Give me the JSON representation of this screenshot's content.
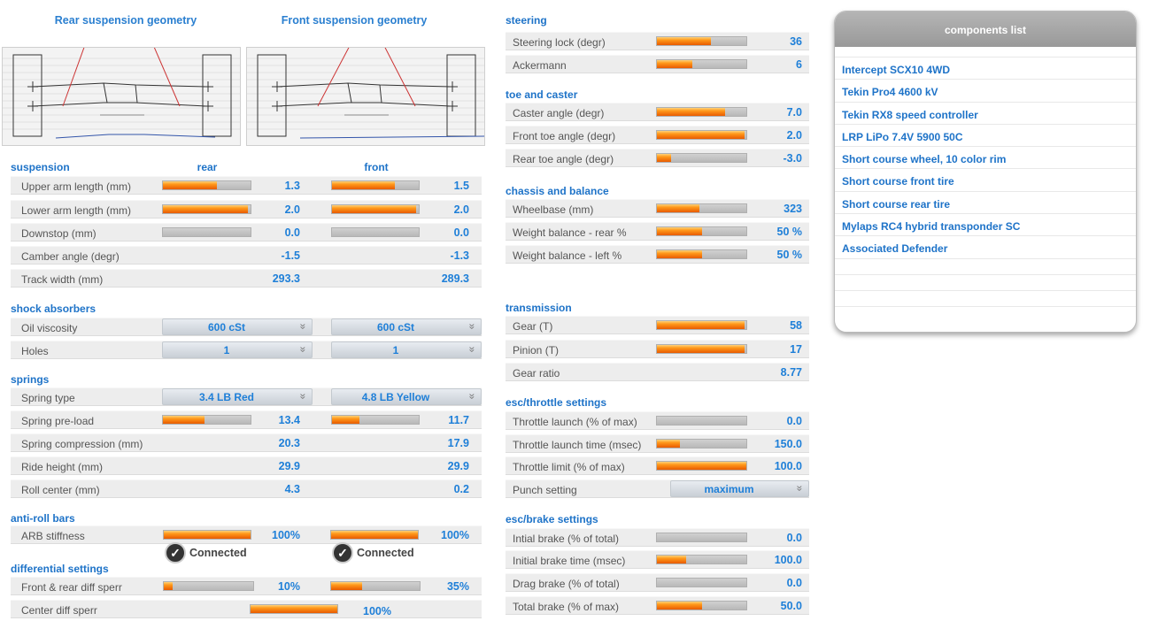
{
  "geometry": {
    "rear_title": "Rear suspension geometry",
    "front_title": "Front suspension geometry"
  },
  "suspension": {
    "title": "suspension",
    "rear_header": "rear",
    "front_header": "front",
    "rows": [
      {
        "label": "Upper arm length (mm)",
        "rear": "1.3",
        "front": "1.5",
        "rear_level": 0.62,
        "front_level": 0.72
      },
      {
        "label": "Lower arm length (mm)",
        "rear": "2.0",
        "front": "2.0",
        "rear_level": 0.97,
        "front_level": 0.97
      },
      {
        "label": "Downstop (mm)",
        "rear": "0.0",
        "front": "0.0",
        "rear_level": 0.0,
        "front_level": 0.0
      },
      {
        "label": "Camber angle (degr)",
        "rear": "-1.5",
        "front": "-1.3"
      },
      {
        "label": "Track width (mm)",
        "rear": "293.3",
        "front": "289.3"
      }
    ]
  },
  "shock_absorbers": {
    "title": "shock absorbers",
    "rows": [
      {
        "label": "Oil viscosity",
        "rear": "600 cSt",
        "front": "600 cSt"
      },
      {
        "label": "Holes",
        "rear": "1",
        "front": "1"
      }
    ]
  },
  "springs": {
    "title": "springs",
    "rows": [
      {
        "label": "Spring type",
        "rear": "3.4 LB Red",
        "front": "4.8 LB Yellow"
      },
      {
        "label": "Spring pre-load",
        "rear": "13.4",
        "front": "11.7",
        "rear_level": 0.47,
        "front_level": 0.32
      },
      {
        "label": "Spring compression (mm)",
        "rear": "20.3",
        "front": "17.9"
      },
      {
        "label": "Ride height (mm)",
        "rear": "29.9",
        "front": "29.9"
      },
      {
        "label": "Roll center (mm)",
        "rear": "4.3",
        "front": "0.2"
      }
    ]
  },
  "anti_roll": {
    "title": "anti-roll bars",
    "label": "ARB stiffness",
    "rear": "100%",
    "front": "100%",
    "rear_level": 1.0,
    "front_level": 1.0,
    "connected_label": "Connected",
    "check_icon": "check-circle-icon"
  },
  "differential": {
    "title": "differential settings",
    "rows": [
      {
        "label": "Front & rear diff sperr",
        "rear": "10%",
        "front": "35%",
        "rear_level": 0.1,
        "front_level": 0.35
      },
      {
        "label": "Center diff sperr",
        "value": "100%",
        "level": 1.0
      }
    ]
  },
  "steering": {
    "title": "steering",
    "rows": [
      {
        "label": "Steering lock (degr)",
        "value": "36",
        "level": 0.6
      },
      {
        "label": "Ackermann",
        "value": "6",
        "level": 0.4
      }
    ]
  },
  "toe_caster": {
    "title": "toe and caster",
    "rows": [
      {
        "label": "Caster angle (degr)",
        "value": "7.0",
        "level": 0.76
      },
      {
        "label": "Front toe angle (degr)",
        "value": "2.0",
        "level": 0.98
      },
      {
        "label": "Rear toe angle (degr)",
        "value": "-3.0",
        "level": 0.16
      }
    ]
  },
  "chassis": {
    "title": "chassis and balance",
    "rows": [
      {
        "label": "Wheelbase (mm)",
        "value": "323",
        "level": 0.48
      },
      {
        "label": "Weight balance - rear %",
        "value": "50 %",
        "level": 0.5
      },
      {
        "label": "Weight balance - left %",
        "value": "50 %",
        "level": 0.5
      }
    ]
  },
  "transmission": {
    "title": "transmission",
    "rows": [
      {
        "label": "Gear (T)",
        "value": "58",
        "level": 0.98
      },
      {
        "label": "Pinion (T)",
        "value": "17",
        "level": 0.98
      },
      {
        "label": "Gear ratio",
        "value": "8.77"
      }
    ]
  },
  "esc_throttle": {
    "title": "esc/throttle settings",
    "rows": [
      {
        "label": "Throttle launch (% of max)",
        "value": "0.0",
        "level": 0.0
      },
      {
        "label": "Throttle launch time (msec)",
        "value": "150.0",
        "level": 0.26
      },
      {
        "label": "Throttle limit (% of max)",
        "value": "100.0",
        "level": 1.0
      },
      {
        "label": "Punch setting",
        "value": "maximum"
      }
    ]
  },
  "esc_brake": {
    "title": "esc/brake settings",
    "rows": [
      {
        "label": "Intial brake (% of total)",
        "value": "0.0",
        "level": 0.0
      },
      {
        "label": "Initial brake time (msec)",
        "value": "100.0",
        "level": 0.33
      },
      {
        "label": "Drag brake (% of total)",
        "value": "0.0",
        "level": 0.0
      },
      {
        "label": "Total brake (% of max)",
        "value": "50.0",
        "level": 0.5
      }
    ]
  },
  "components": {
    "title": "components list",
    "items": [
      "Intercept SCX10 4WD",
      "Tekin Pro4 4600 kV",
      "Tekin RX8 speed controller",
      "LRP LiPo 7.4V 5900 50C",
      "Short course wheel, 10 color rim",
      "Short course front tire",
      "Short course rear tire",
      "Mylaps RC4 hybrid transponder SC",
      "Associated Defender"
    ]
  },
  "icons": {
    "dropdown": "chevron-double-down-icon"
  }
}
